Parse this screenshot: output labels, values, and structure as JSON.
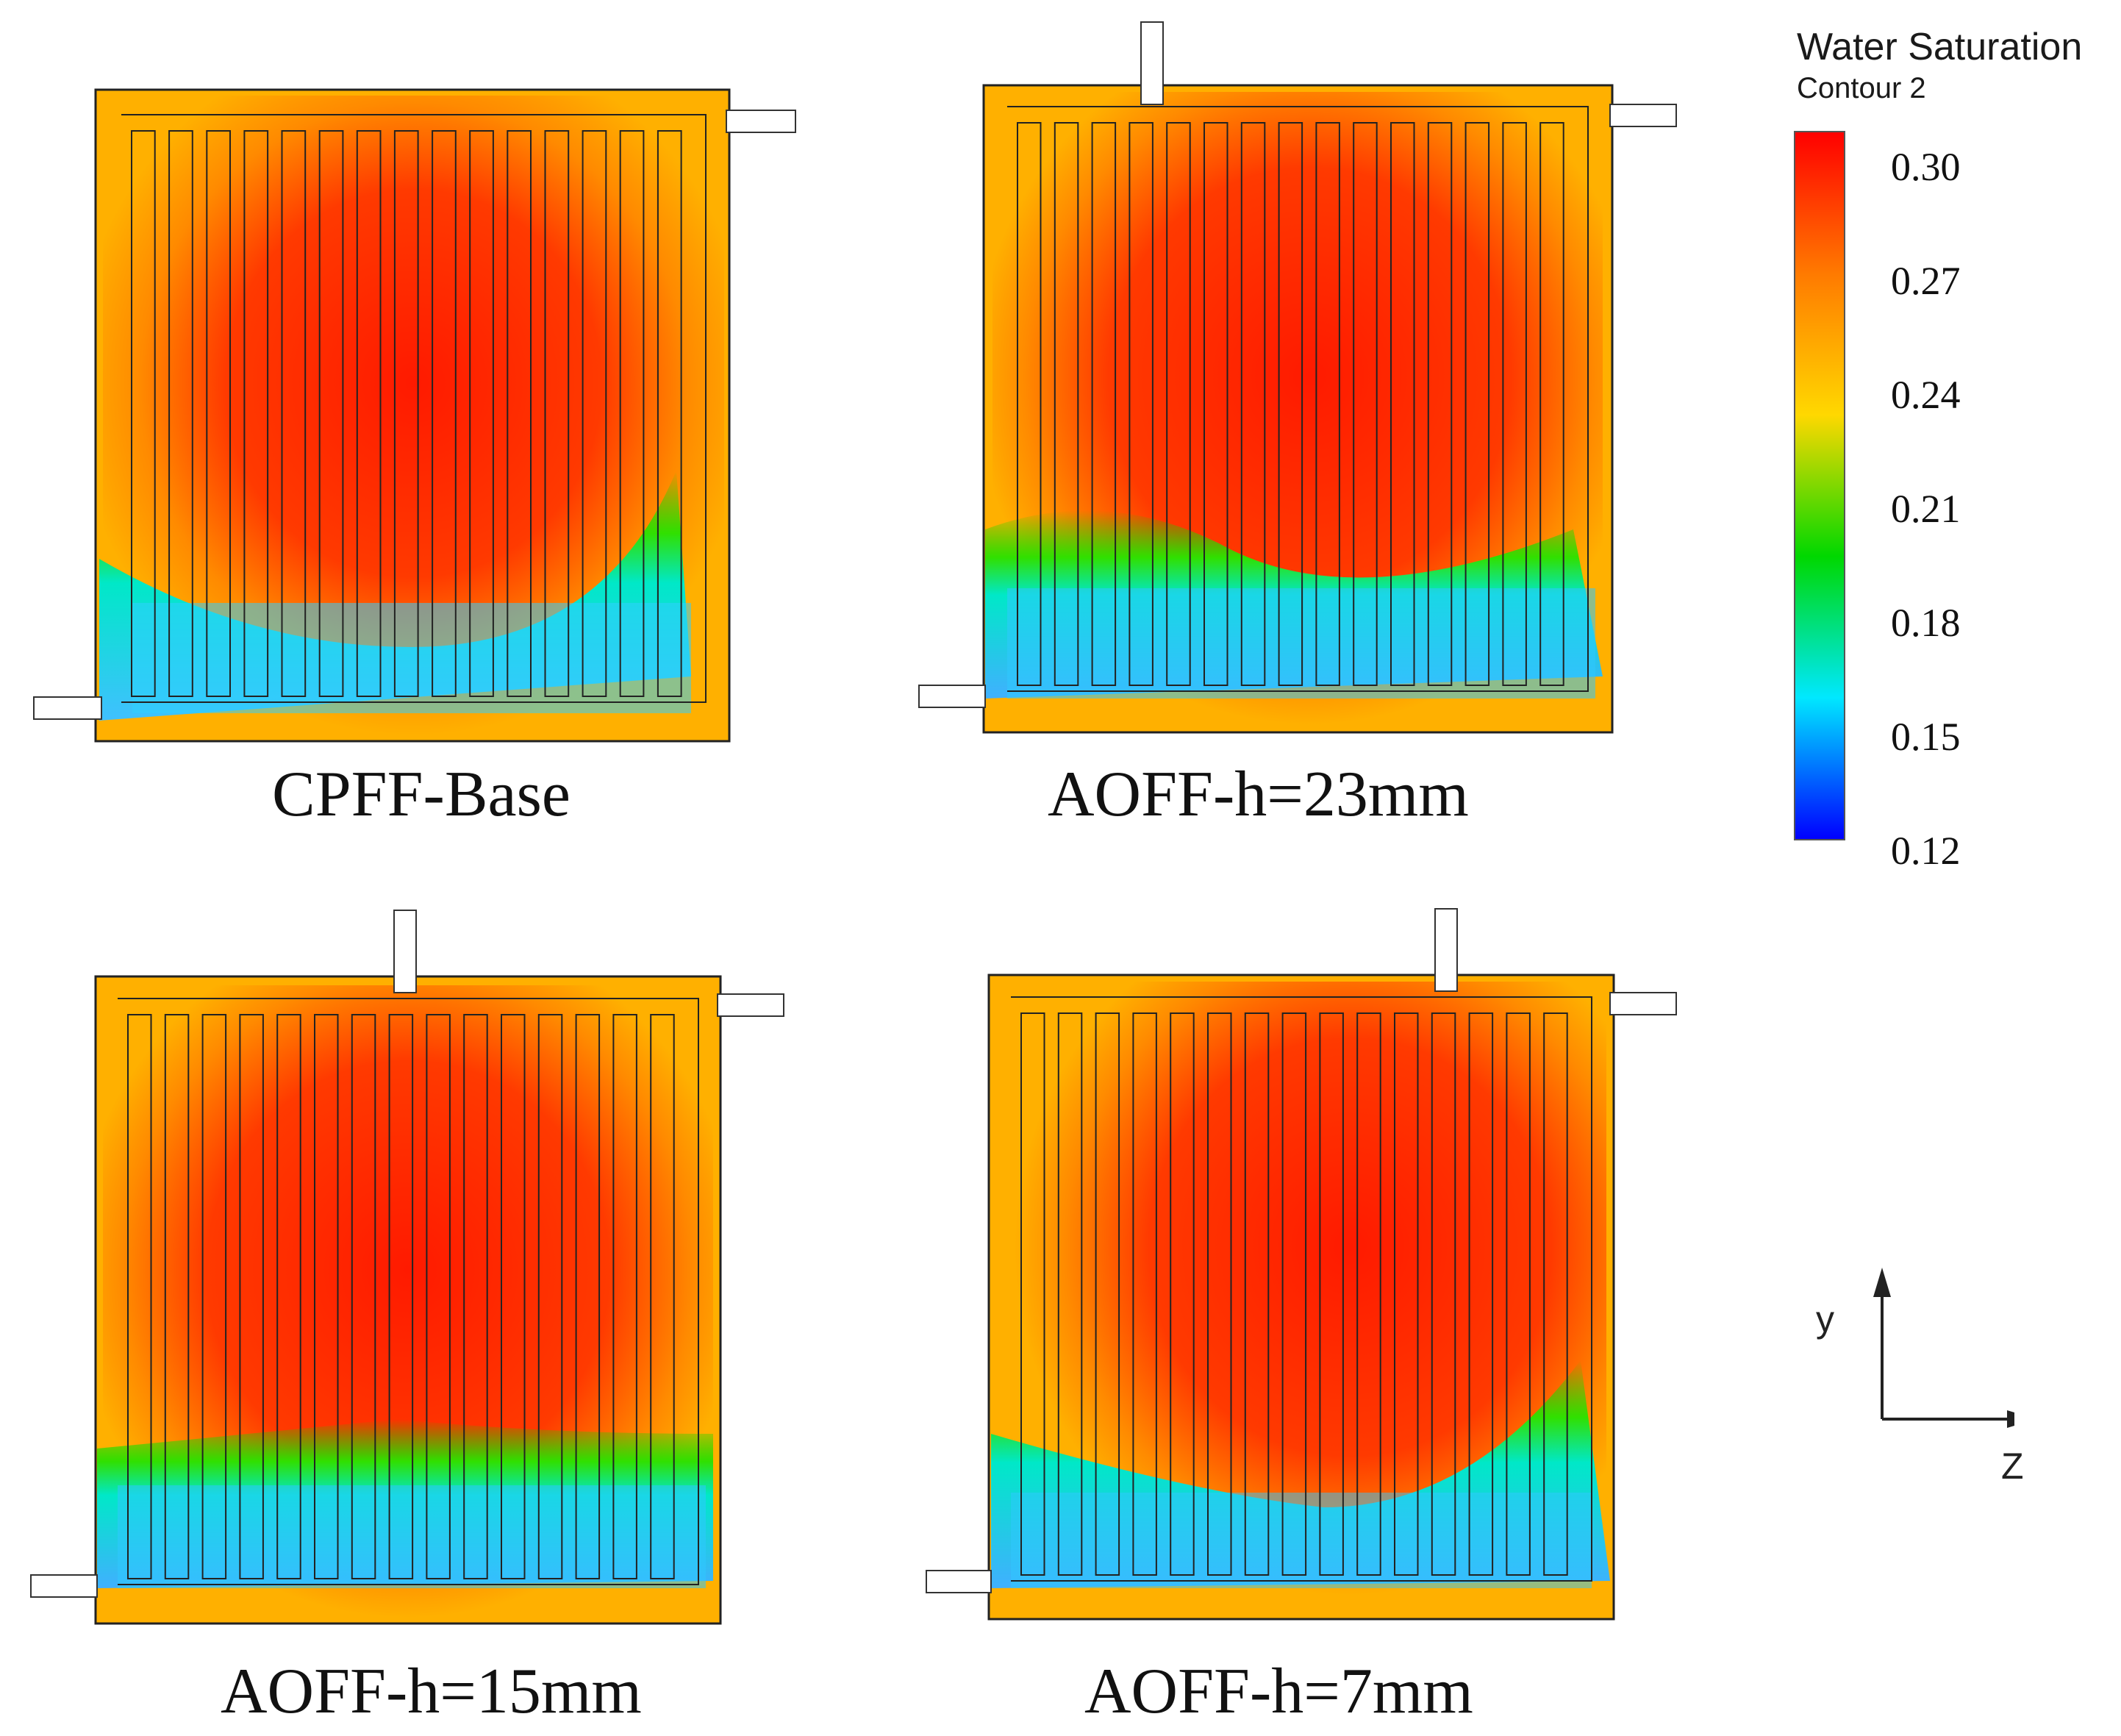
{
  "legend": {
    "title": "Water Saturation",
    "subtitle": "Contour 2",
    "ticks": [
      "0.30",
      "0.27",
      "0.24",
      "0.21",
      "0.18",
      "0.15",
      "0.12"
    ],
    "range": [
      0.12,
      0.3
    ],
    "color_stops": [
      "#ff0000",
      "#ff7a00",
      "#ffd800",
      "#00d800",
      "#00e8ff",
      "#0000ff"
    ]
  },
  "panels": [
    {
      "id": "cpff-base",
      "caption": "CPFF-Base",
      "inlet": "top-right-side",
      "outlet": "bottom-left-side",
      "channels": 15
    },
    {
      "id": "aoff-23",
      "caption": "AOFF-h=23mm",
      "inlet": "top",
      "outlet": "bottom-left-side",
      "channels": 15
    },
    {
      "id": "aoff-15",
      "caption": "AOFF-h=15mm",
      "inlet": "top",
      "outlet": "bottom-left-side",
      "channels": 15
    },
    {
      "id": "aoff-7",
      "caption": "AOFF-h=7mm",
      "inlet": "top",
      "outlet": "bottom-left-side",
      "channels": 15
    }
  ],
  "axes": {
    "y_label": "y",
    "z_label": "Z"
  }
}
